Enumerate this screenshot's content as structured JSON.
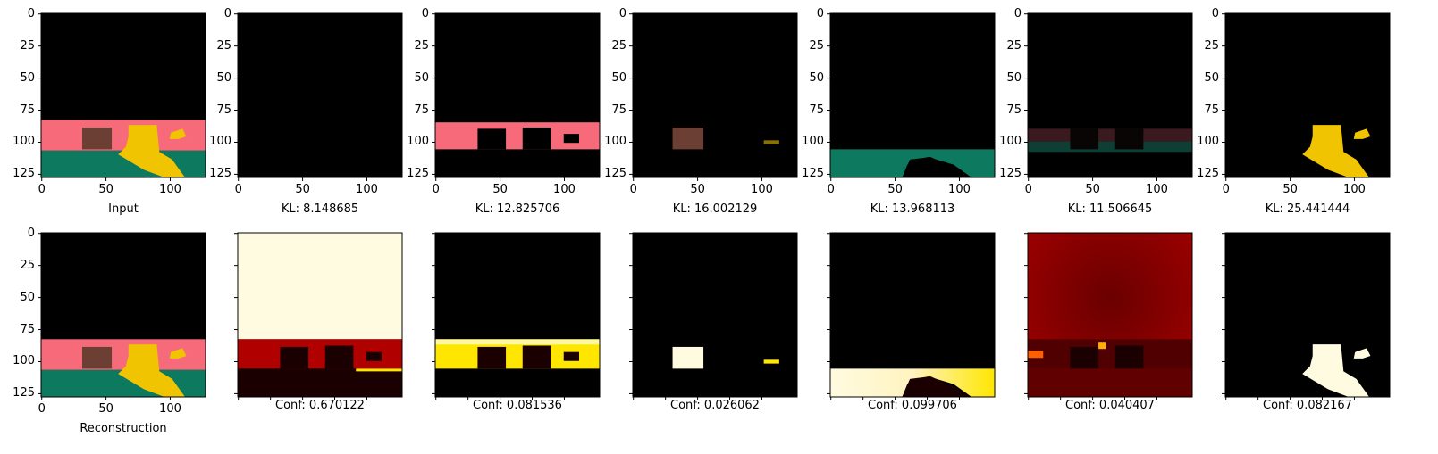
{
  "figure": {
    "rows": [
      {
        "name": "top",
        "panels": [
          {
            "id": "input",
            "caption": "Input",
            "kind": "scene"
          },
          {
            "id": "slot1",
            "caption": "KL: 8.148685",
            "kind": "empty"
          },
          {
            "id": "slot2",
            "caption": "KL: 12.825706",
            "kind": "wall"
          },
          {
            "id": "slot3",
            "caption": "KL: 16.002129",
            "kind": "box"
          },
          {
            "id": "slot4",
            "caption": "KL: 13.968113",
            "kind": "floor"
          },
          {
            "id": "slot5",
            "caption": "KL: 11.506645",
            "kind": "faint"
          },
          {
            "id": "slot6",
            "caption": "KL: 25.441444",
            "kind": "duck"
          }
        ]
      },
      {
        "name": "bottom",
        "panels": [
          {
            "id": "recon",
            "caption": "Reconstruction",
            "kind": "scene"
          },
          {
            "id": "conf1",
            "caption": "Conf: 0.670122",
            "kind": "heat-bg"
          },
          {
            "id": "conf2",
            "caption": "Conf: 0.081536",
            "kind": "heat-wall"
          },
          {
            "id": "conf3",
            "caption": "Conf: 0.026062",
            "kind": "heat-box"
          },
          {
            "id": "conf4",
            "caption": "Conf: 0.099706",
            "kind": "heat-floor"
          },
          {
            "id": "conf5",
            "caption": "Conf: 0.040407",
            "kind": "heat-noise"
          },
          {
            "id": "conf6",
            "caption": "Conf: 0.082167",
            "kind": "heat-duck"
          }
        ]
      }
    ],
    "y_ticks": [
      "0",
      "25",
      "50",
      "75",
      "100",
      "125"
    ],
    "x_ticks": [
      "0",
      "50",
      "100"
    ],
    "colors": {
      "black": "#000000",
      "wall": "#f76a7a",
      "floor": "#0d7a5f",
      "box": "#6b3f33",
      "duck": "#f0c400",
      "heat_dark": "#1a0000",
      "heat_red": "#c00000",
      "heat_yellow": "#ffe600",
      "heat_white": "#fffbe0"
    }
  }
}
